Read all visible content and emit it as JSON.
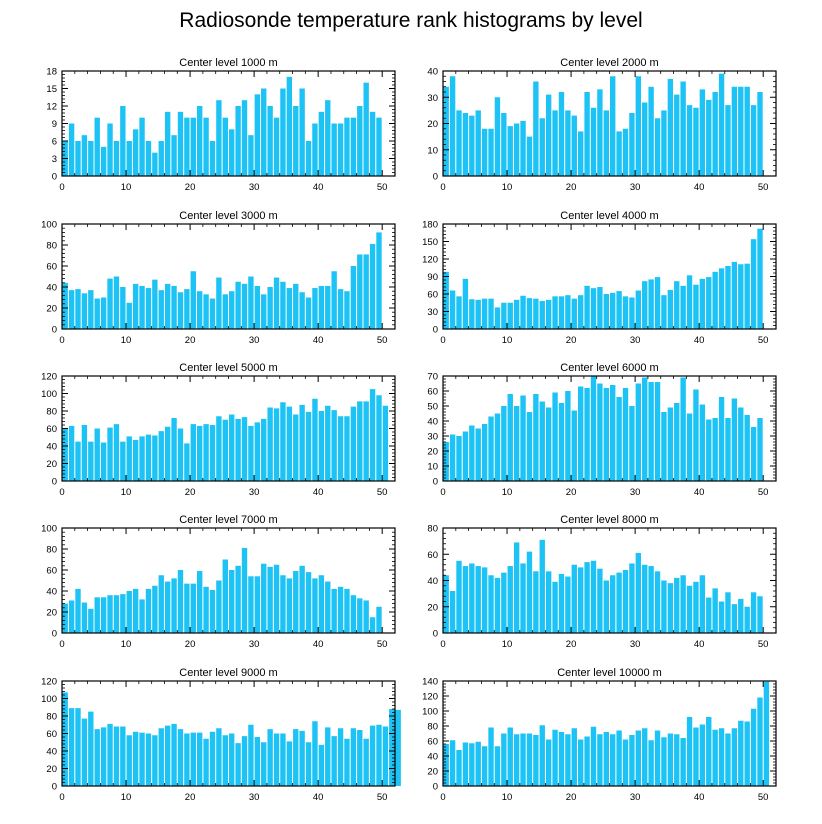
{
  "title": "Radiosonde temperature rank histograms by level",
  "bar_color": "#1ec3f5",
  "chart_data": [
    {
      "type": "bar",
      "title": "Center level 1000 m",
      "xlim": [
        0,
        52
      ],
      "xticks": [
        0,
        10,
        20,
        30,
        40,
        50
      ],
      "ylim": [
        0,
        18
      ],
      "yticks": [
        0,
        3,
        6,
        9,
        12,
        15,
        18
      ],
      "values": [
        6,
        9,
        6,
        7,
        6,
        10,
        5,
        9,
        6,
        12,
        6,
        8,
        10,
        6,
        4,
        6,
        11,
        7,
        11,
        10,
        10,
        12,
        10,
        6,
        13,
        10,
        8,
        12,
        13,
        7,
        14,
        15,
        12,
        10,
        15,
        17,
        12,
        15,
        6,
        9,
        11,
        13,
        9,
        9,
        10,
        10,
        12,
        16,
        11,
        10
      ]
    },
    {
      "type": "bar",
      "title": "Center level 2000 m",
      "xlim": [
        0,
        52
      ],
      "xticks": [
        0,
        10,
        20,
        30,
        40,
        50
      ],
      "ylim": [
        0,
        40
      ],
      "yticks": [
        0,
        10,
        20,
        30,
        40
      ],
      "values": [
        34,
        38,
        25,
        24,
        23,
        25,
        18,
        18,
        30,
        24,
        19,
        20,
        21,
        15,
        36,
        22,
        31,
        25,
        32,
        25,
        23,
        17,
        32,
        26,
        33,
        25,
        38,
        17,
        18,
        24,
        38,
        28,
        34,
        22,
        25,
        37,
        31,
        36,
        27,
        26,
        33,
        29,
        32,
        39,
        27,
        34,
        34,
        34,
        27,
        32
      ]
    },
    {
      "type": "bar",
      "title": "Center level 3000 m",
      "xlim": [
        0,
        52
      ],
      "xticks": [
        0,
        10,
        20,
        30,
        40,
        50
      ],
      "ylim": [
        0,
        100
      ],
      "yticks": [
        0,
        20,
        40,
        60,
        80,
        100
      ],
      "values": [
        44,
        37,
        38,
        34,
        37,
        29,
        30,
        48,
        50,
        40,
        25,
        43,
        41,
        39,
        47,
        37,
        43,
        41,
        35,
        38,
        55,
        36,
        33,
        29,
        49,
        33,
        36,
        45,
        43,
        50,
        41,
        33,
        40,
        49,
        45,
        39,
        43,
        35,
        30,
        39,
        41,
        41,
        55,
        38,
        36,
        60,
        71,
        71,
        81,
        92
      ]
    },
    {
      "type": "bar",
      "title": "Center level 4000 m",
      "xlim": [
        0,
        52
      ],
      "xticks": [
        0,
        10,
        20,
        30,
        40,
        50
      ],
      "ylim": [
        0,
        180
      ],
      "yticks": [
        0,
        30,
        60,
        90,
        120,
        150,
        180
      ],
      "values": [
        98,
        66,
        56,
        86,
        51,
        50,
        52,
        52,
        37,
        45,
        45,
        50,
        57,
        53,
        52,
        48,
        50,
        56,
        56,
        58,
        52,
        58,
        74,
        70,
        72,
        60,
        62,
        65,
        56,
        54,
        66,
        82,
        85,
        89,
        58,
        67,
        82,
        74,
        92,
        76,
        86,
        89,
        98,
        104,
        108,
        115,
        111,
        112,
        154,
        172
      ]
    },
    {
      "type": "bar",
      "title": "Center level 5000 m",
      "xlim": [
        0,
        52
      ],
      "xticks": [
        0,
        10,
        20,
        30,
        40,
        50
      ],
      "ylim": [
        0,
        120
      ],
      "yticks": [
        0,
        20,
        40,
        60,
        80,
        100,
        120
      ],
      "values": [
        60,
        63,
        45,
        64,
        45,
        60,
        44,
        61,
        65,
        45,
        51,
        47,
        51,
        53,
        52,
        57,
        62,
        72,
        60,
        43,
        65,
        63,
        65,
        64,
        74,
        70,
        76,
        71,
        73,
        63,
        67,
        71,
        84,
        83,
        90,
        85,
        76,
        87,
        79,
        94,
        80,
        86,
        81,
        74,
        74,
        85,
        91,
        91,
        105,
        98,
        86
      ]
    },
    {
      "type": "bar",
      "title": "Center level 6000 m",
      "xlim": [
        0,
        52
      ],
      "xticks": [
        0,
        10,
        20,
        30,
        40,
        50
      ],
      "ylim": [
        0,
        70
      ],
      "yticks": [
        0,
        10,
        20,
        30,
        40,
        50,
        60,
        70
      ],
      "values": [
        26,
        31,
        30,
        33,
        37,
        35,
        38,
        43,
        45,
        50,
        58,
        50,
        57,
        46,
        58,
        53,
        49,
        59,
        52,
        60,
        47,
        63,
        62,
        70,
        65,
        62,
        64,
        56,
        62,
        50,
        65,
        69,
        66,
        66,
        46,
        49,
        52,
        69,
        45,
        61,
        51,
        41,
        42,
        56,
        42,
        55,
        49,
        44,
        36,
        42
      ]
    },
    {
      "type": "bar",
      "title": "Center level 7000 m",
      "xlim": [
        0,
        52
      ],
      "xticks": [
        0,
        10,
        20,
        30,
        40,
        50
      ],
      "ylim": [
        0,
        100
      ],
      "yticks": [
        0,
        20,
        40,
        60,
        80,
        100
      ],
      "values": [
        28,
        31,
        42,
        29,
        23,
        34,
        34,
        36,
        36,
        37,
        40,
        42,
        32,
        42,
        45,
        55,
        49,
        52,
        60,
        47,
        47,
        59,
        44,
        41,
        50,
        70,
        60,
        64,
        81,
        54,
        54,
        66,
        63,
        65,
        55,
        52,
        59,
        64,
        58,
        52,
        55,
        49,
        42,
        44,
        42,
        36,
        33,
        31,
        15,
        25
      ]
    },
    {
      "type": "bar",
      "title": "Center level 8000 m",
      "xlim": [
        0,
        52
      ],
      "xticks": [
        0,
        10,
        20,
        30,
        40,
        50
      ],
      "ylim": [
        0,
        80
      ],
      "yticks": [
        0,
        20,
        40,
        60,
        80
      ],
      "values": [
        44,
        32,
        55,
        51,
        53,
        51,
        50,
        44,
        42,
        46,
        51,
        69,
        53,
        62,
        47,
        71,
        47,
        39,
        45,
        43,
        52,
        50,
        54,
        55,
        49,
        40,
        44,
        46,
        48,
        53,
        61,
        52,
        51,
        47,
        40,
        38,
        42,
        44,
        36,
        39,
        44,
        27,
        34,
        24,
        31,
        22,
        26,
        20,
        31,
        28
      ]
    },
    {
      "type": "bar",
      "title": "Center level 9000 m",
      "xlim": [
        0,
        52
      ],
      "xticks": [
        0,
        10,
        20,
        30,
        40,
        50
      ],
      "ylim": [
        0,
        120
      ],
      "yticks": [
        0,
        20,
        40,
        60,
        80,
        100,
        120
      ],
      "values": [
        107,
        89,
        89,
        77,
        85,
        65,
        67,
        71,
        68,
        68,
        58,
        62,
        61,
        60,
        58,
        66,
        69,
        71,
        65,
        60,
        61,
        61,
        54,
        62,
        66,
        58,
        60,
        49,
        57,
        70,
        56,
        50,
        65,
        60,
        60,
        51,
        65,
        63,
        50,
        74,
        47,
        67,
        57,
        66,
        54,
        66,
        64,
        54,
        69,
        70,
        68,
        88,
        87
      ]
    },
    {
      "type": "bar",
      "title": "Center level 10000 m",
      "xlim": [
        0,
        52
      ],
      "xticks": [
        0,
        10,
        20,
        30,
        40,
        50
      ],
      "ylim": [
        0,
        140
      ],
      "yticks": [
        0,
        20,
        40,
        60,
        80,
        100,
        120,
        140
      ],
      "values": [
        56,
        61,
        48,
        58,
        57,
        59,
        53,
        78,
        53,
        70,
        78,
        69,
        70,
        70,
        68,
        81,
        62,
        75,
        72,
        69,
        77,
        62,
        66,
        79,
        69,
        72,
        69,
        74,
        62,
        68,
        74,
        77,
        61,
        74,
        65,
        70,
        69,
        64,
        92,
        78,
        82,
        92,
        75,
        77,
        70,
        77,
        87,
        86,
        103,
        118,
        139
      ]
    }
  ]
}
